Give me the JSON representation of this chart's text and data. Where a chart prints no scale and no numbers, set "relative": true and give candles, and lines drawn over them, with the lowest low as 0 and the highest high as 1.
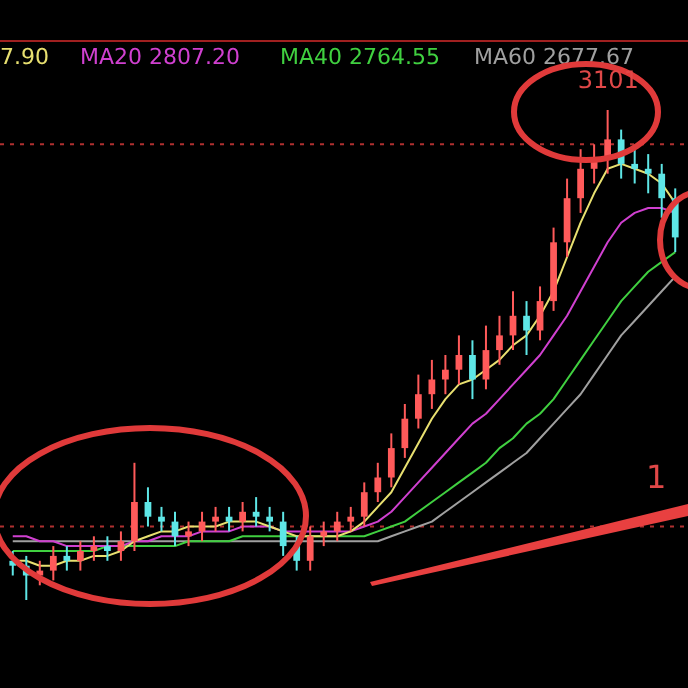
{
  "chart_data": {
    "type": "candlestick",
    "relative": true,
    "legend": "top left",
    "categories": [
      null,
      null,
      null,
      null,
      null,
      null,
      null,
      null,
      null,
      null,
      null,
      null,
      null,
      null,
      null,
      null,
      null,
      null,
      null,
      null,
      null,
      null,
      null,
      null,
      null,
      null,
      null,
      null,
      null,
      null,
      null,
      null,
      null,
      null,
      null,
      null,
      null,
      null,
      null,
      null,
      null,
      null,
      null,
      null,
      null,
      null,
      null,
      null,
      null,
      null
    ],
    "ohlc": [
      [
        0.08,
        0.1,
        0.05,
        0.07
      ],
      [
        0.07,
        0.09,
        0,
        0.05
      ],
      [
        0.05,
        0.08,
        0.03,
        0.06
      ],
      [
        0.06,
        0.11,
        0.04,
        0.09
      ],
      [
        0.09,
        0.11,
        0.06,
        0.08
      ],
      [
        0.08,
        0.12,
        0.06,
        0.1
      ],
      [
        0.1,
        0.13,
        0.08,
        0.11
      ],
      [
        0.11,
        0.13,
        0.08,
        0.1
      ],
      [
        0.1,
        0.14,
        0.08,
        0.12
      ],
      [
        0.12,
        0.28,
        0.1,
        0.2
      ],
      [
        0.2,
        0.23,
        0.15,
        0.17
      ],
      [
        0.17,
        0.19,
        0.14,
        0.16
      ],
      [
        0.16,
        0.18,
        0.11,
        0.13
      ],
      [
        0.13,
        0.16,
        0.11,
        0.14
      ],
      [
        0.14,
        0.18,
        0.12,
        0.16
      ],
      [
        0.16,
        0.19,
        0.14,
        0.17
      ],
      [
        0.17,
        0.19,
        0.14,
        0.16
      ],
      [
        0.16,
        0.2,
        0.14,
        0.18
      ],
      [
        0.18,
        0.21,
        0.15,
        0.17
      ],
      [
        0.17,
        0.19,
        0.14,
        0.16
      ],
      [
        0.16,
        0.18,
        0.09,
        0.11
      ],
      [
        0.11,
        0.13,
        0.06,
        0.08
      ],
      [
        0.08,
        0.15,
        0.06,
        0.13
      ],
      [
        0.13,
        0.16,
        0.11,
        0.14
      ],
      [
        0.14,
        0.18,
        0.12,
        0.16
      ],
      [
        0.16,
        0.19,
        0.14,
        0.17
      ],
      [
        0.17,
        0.24,
        0.15,
        0.22
      ],
      [
        0.22,
        0.28,
        0.2,
        0.25
      ],
      [
        0.25,
        0.34,
        0.23,
        0.31
      ],
      [
        0.31,
        0.4,
        0.29,
        0.37
      ],
      [
        0.37,
        0.46,
        0.35,
        0.42
      ],
      [
        0.42,
        0.49,
        0.39,
        0.45
      ],
      [
        0.45,
        0.5,
        0.42,
        0.47
      ],
      [
        0.47,
        0.54,
        0.44,
        0.5
      ],
      [
        0.5,
        0.53,
        0.41,
        0.45
      ],
      [
        0.45,
        0.56,
        0.43,
        0.51
      ],
      [
        0.51,
        0.58,
        0.48,
        0.54
      ],
      [
        0.54,
        0.63,
        0.51,
        0.58
      ],
      [
        0.58,
        0.61,
        0.5,
        0.55
      ],
      [
        0.55,
        0.64,
        0.53,
        0.61
      ],
      [
        0.61,
        0.76,
        0.59,
        0.73
      ],
      [
        0.73,
        0.86,
        0.7,
        0.82
      ],
      [
        0.82,
        0.92,
        0.79,
        0.88
      ],
      [
        0.88,
        0.93,
        0.85,
        0.9
      ],
      [
        0.9,
        1,
        0.87,
        0.94
      ],
      [
        0.94,
        0.96,
        0.86,
        0.89
      ],
      [
        0.89,
        0.92,
        0.85,
        0.88
      ],
      [
        0.88,
        0.91,
        0.83,
        0.87
      ],
      [
        0.87,
        0.89,
        0.78,
        0.82
      ],
      [
        0.82,
        0.84,
        0.71,
        0.74
      ]
    ],
    "colors": [
      "#5ee6e6",
      "#5ee6e6",
      "#ff5a5a",
      "#ff5a5a",
      "#5ee6e6",
      "#ff5a5a",
      "#ff5a5a",
      "#5ee6e6",
      "#ff5a5a",
      "#ff5a5a",
      "#5ee6e6",
      "#5ee6e6",
      "#5ee6e6",
      "#ff5a5a",
      "#ff5a5a",
      "#ff5a5a",
      "#5ee6e6",
      "#ff5a5a",
      "#5ee6e6",
      "#5ee6e6",
      "#5ee6e6",
      "#5ee6e6",
      "#ff5a5a",
      "#ff5a5a",
      "#ff5a5a",
      "#ff5a5a",
      "#ff5a5a",
      "#ff5a5a",
      "#ff5a5a",
      "#ff5a5a",
      "#ff5a5a",
      "#ff5a5a",
      "#ff5a5a",
      "#ff5a5a",
      "#5ee6e6",
      "#ff5a5a",
      "#ff5a5a",
      "#ff5a5a",
      "#5ee6e6",
      "#ff5a5a",
      "#ff5a5a",
      "#ff5a5a",
      "#ff5a5a",
      "#ff5a5a",
      "#ff5a5a",
      "#5ee6e6",
      "#5ee6e6",
      "#5ee6e6",
      "#5ee6e6",
      "#5ee6e6"
    ],
    "series": [
      {
        "type": "line",
        "name": "7.90",
        "color": "#e8e070",
        "values": [
          0.08,
          0.08,
          0.07,
          0.07,
          0.08,
          0.08,
          0.09,
          0.09,
          0.1,
          0.12,
          0.13,
          0.14,
          0.14,
          0.15,
          0.15,
          0.15,
          0.16,
          0.16,
          0.16,
          0.15,
          0.14,
          0.13,
          0.13,
          0.13,
          0.13,
          0.14,
          0.16,
          0.19,
          0.22,
          0.27,
          0.32,
          0.37,
          0.41,
          0.44,
          0.45,
          0.47,
          0.49,
          0.52,
          0.54,
          0.58,
          0.63,
          0.7,
          0.77,
          0.83,
          0.88,
          0.89,
          0.88,
          0.87,
          0.85,
          0.81
        ]
      },
      {
        "type": "line",
        "name": "MA20 2807.20",
        "color": "#d040d0",
        "values": [
          0.13,
          0.13,
          0.12,
          0.12,
          0.11,
          0.11,
          0.11,
          0.11,
          0.11,
          0.12,
          0.12,
          0.13,
          0.13,
          0.13,
          0.14,
          0.14,
          0.14,
          0.15,
          0.15,
          0.15,
          0.14,
          0.14,
          0.14,
          0.14,
          0.14,
          0.14,
          0.15,
          0.16,
          0.18,
          0.21,
          0.24,
          0.27,
          0.3,
          0.33,
          0.36,
          0.38,
          0.41,
          0.44,
          0.47,
          0.5,
          0.54,
          0.58,
          0.63,
          0.68,
          0.73,
          0.77,
          0.79,
          0.8,
          0.8,
          0.79
        ]
      },
      {
        "type": "line",
        "name": "MA40 2764.55",
        "color": "#40d040",
        "values": [
          0.1,
          0.1,
          0.1,
          0.1,
          0.1,
          0.1,
          0.1,
          0.11,
          0.11,
          0.11,
          0.11,
          0.11,
          0.11,
          0.12,
          0.12,
          0.12,
          0.12,
          0.13,
          0.13,
          0.13,
          0.13,
          0.13,
          0.13,
          0.13,
          0.13,
          0.13,
          0.13,
          0.14,
          0.15,
          0.16,
          0.18,
          0.2,
          0.22,
          0.24,
          0.26,
          0.28,
          0.31,
          0.33,
          0.36,
          0.38,
          0.41,
          0.45,
          0.49,
          0.53,
          0.57,
          0.61,
          0.64,
          0.67,
          0.69,
          0.71
        ]
      },
      {
        "type": "line",
        "name": "MA60 2677.67",
        "color": "#a0a0a0",
        "values": [
          0.12,
          0.12,
          0.12,
          0.12,
          0.12,
          0.12,
          0.12,
          0.12,
          0.12,
          0.12,
          0.12,
          0.12,
          0.12,
          0.12,
          null,
          null,
          0.12,
          0.12,
          0.12,
          0.12,
          0.12,
          0.12,
          0.12,
          0.12,
          0.12,
          0.12,
          0.12,
          0.12,
          0.13,
          0.14,
          0.15,
          0.16,
          0.18,
          0.2,
          0.22,
          0.24,
          0.26,
          0.28,
          0.3,
          0.33,
          0.36,
          0.39,
          0.42,
          0.46,
          0.5,
          0.54,
          0.57,
          0.6,
          0.63,
          0.66
        ]
      }
    ],
    "ref_lines": [
      {
        "axis": "y",
        "value": 0.93,
        "color": "#b03030",
        "line_style": "dotted"
      },
      {
        "axis": "y",
        "value": 0.15,
        "color": "#b03030",
        "line_style": "dotted"
      }
    ],
    "annotations": [
      {
        "text": "3101",
        "y": 1
      },
      "1"
    ]
  }
}
